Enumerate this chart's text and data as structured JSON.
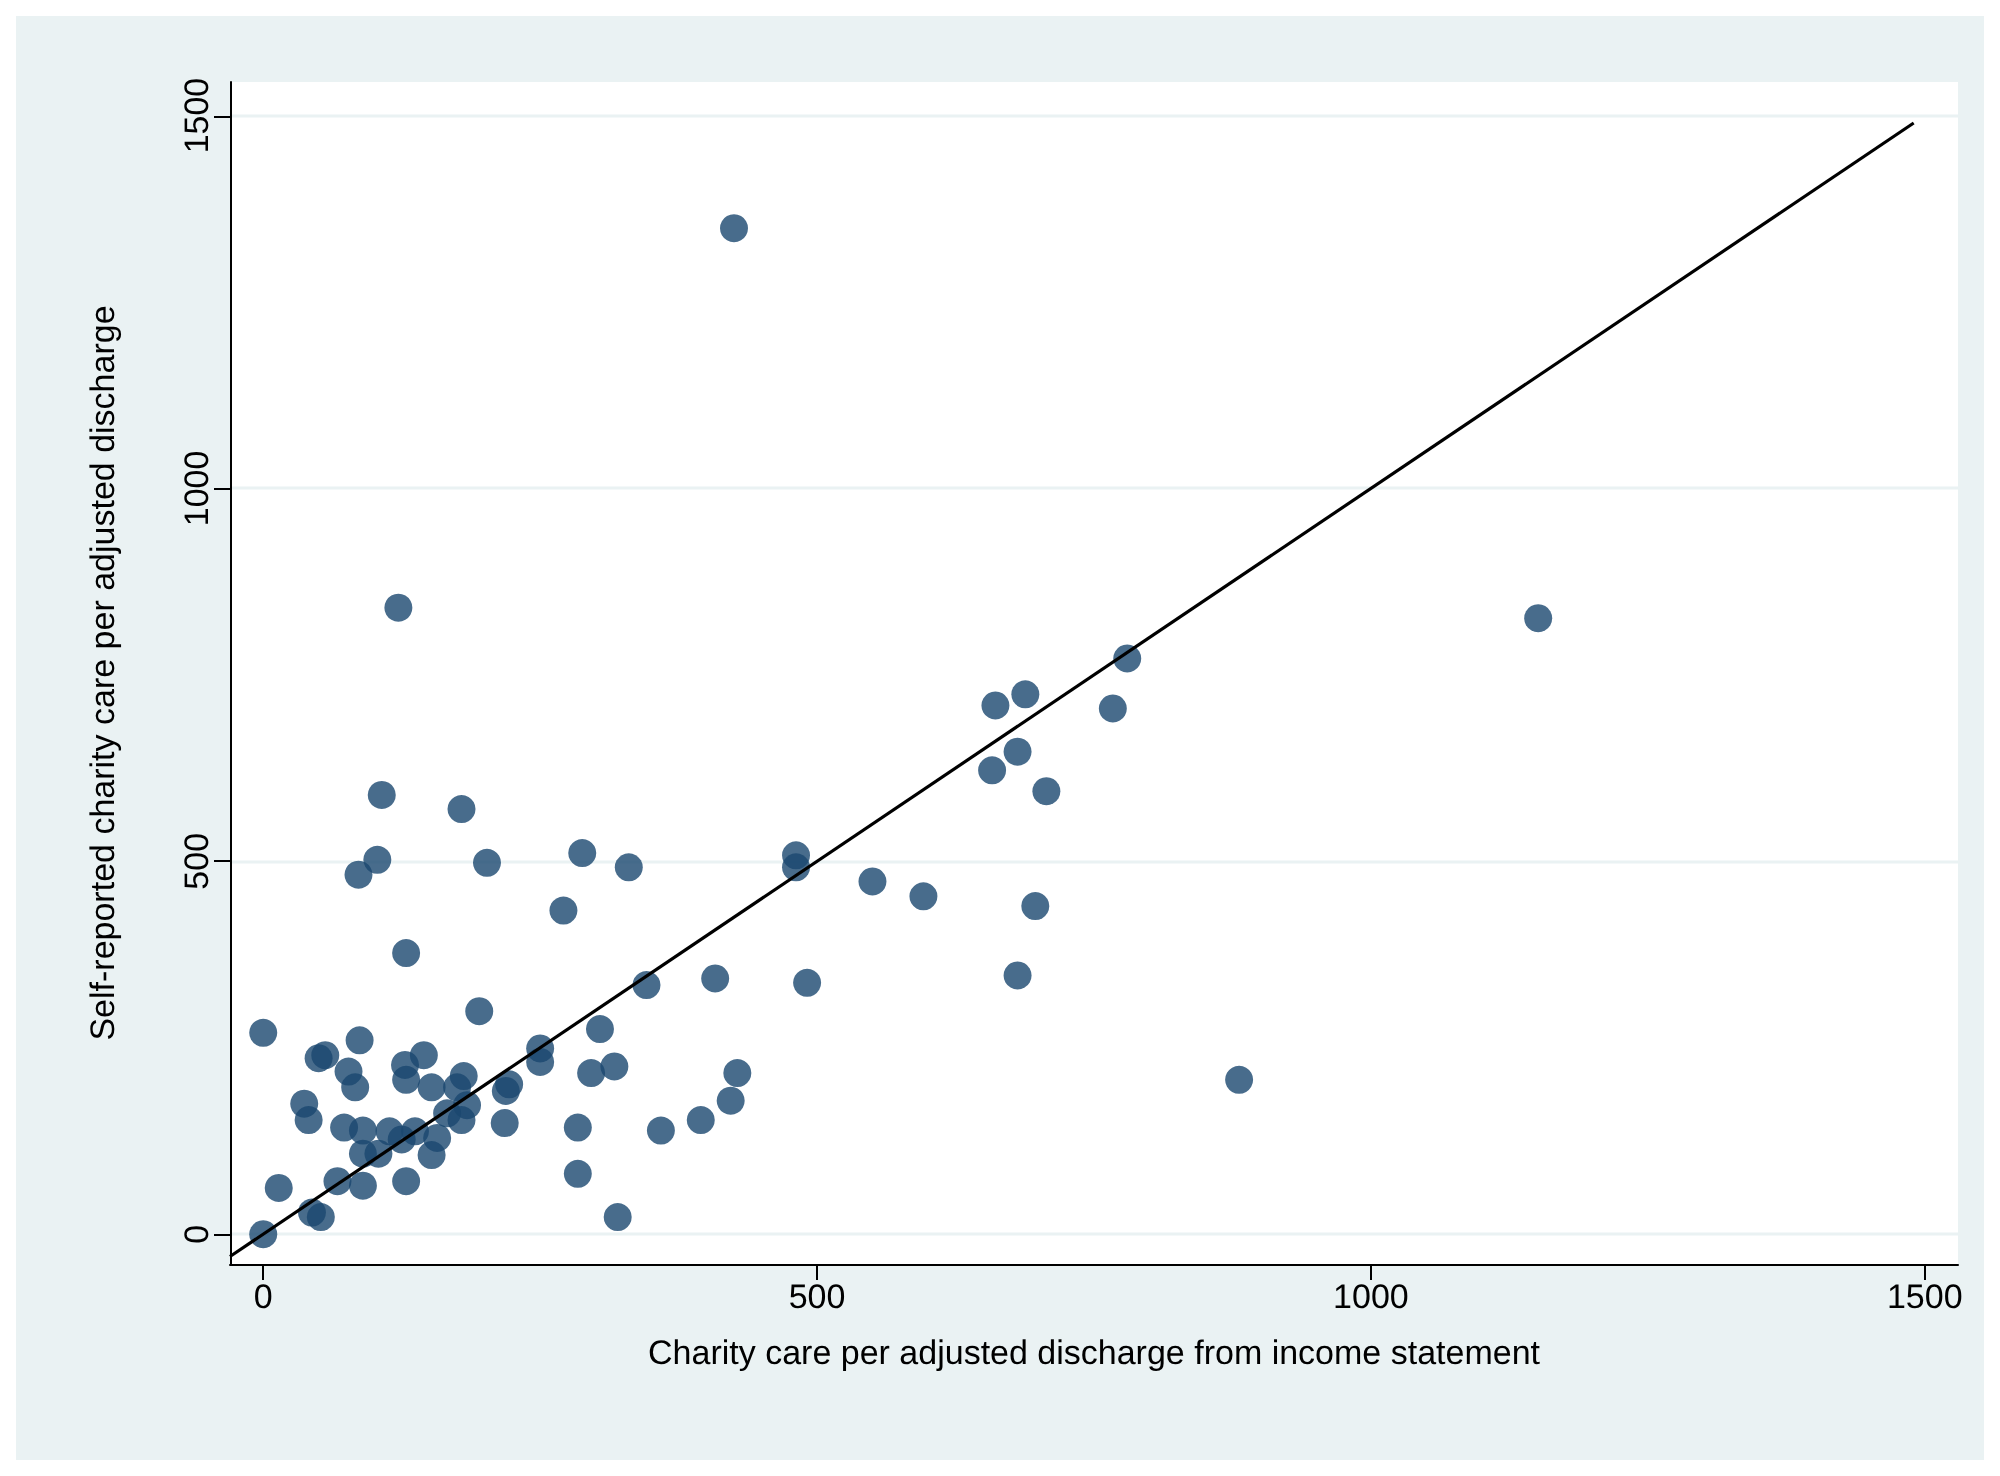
{
  "chart_data": {
    "type": "scatter",
    "xlabel": "Charity care per adjusted discharge from income statement",
    "ylabel": "Self-reported charity care per adjusted discharge",
    "xlim": [
      -30,
      1530
    ],
    "ylim": [
      -40,
      1545
    ],
    "xticks": [
      0,
      500,
      1000,
      1500
    ],
    "yticks": [
      0,
      500,
      1000,
      1500
    ],
    "grid": "y",
    "series": [
      {
        "marker": "circle",
        "color": "#1a476f",
        "x": [
          107,
          179,
          103,
          86,
          202,
          288,
          330,
          271,
          129,
          195,
          346,
          408,
          0,
          50,
          56,
          87,
          145,
          77,
          83,
          128,
          129,
          152,
          181,
          175,
          184,
          179,
          166,
          222,
          219,
          250,
          250,
          304,
          296,
          317,
          37,
          41,
          73,
          90,
          114,
          137,
          125,
          157,
          90,
          104,
          152,
          90,
          67,
          129,
          14,
          44,
          52,
          0,
          218,
          284,
          284,
          320,
          359,
          395,
          422,
          428,
          481,
          481,
          550,
          596,
          491,
          697,
          681,
          661,
          688,
          681,
          658,
          707,
          780,
          767,
          1151,
          881,
          425,
          122
        ],
        "values": [
          589,
          570,
          502,
          482,
          498,
          511,
          492,
          434,
          377,
          299,
          334,
          343,
          270,
          236,
          240,
          260,
          240,
          218,
          197,
          227,
          207,
          197,
          212,
          197,
          173,
          153,
          162,
          201,
          192,
          249,
          231,
          275,
          216,
          225,
          175,
          153,
          143,
          139,
          138,
          138,
          127,
          129,
          108,
          108,
          106,
          65,
          71,
          71,
          62,
          29,
          23,
          0,
          149,
          143,
          81,
          23,
          139,
          153,
          179,
          216,
          508,
          492,
          473,
          453,
          337,
          440,
          347,
          709,
          724,
          647,
          622,
          594,
          772,
          705,
          826,
          207,
          1349,
          840
        ]
      },
      {
        "type": "line",
        "marker": "none",
        "line_style": "solid",
        "color": "#000000",
        "x": [
          -30,
          1490
        ],
        "values": [
          -30,
          1490
        ]
      }
    ]
  }
}
